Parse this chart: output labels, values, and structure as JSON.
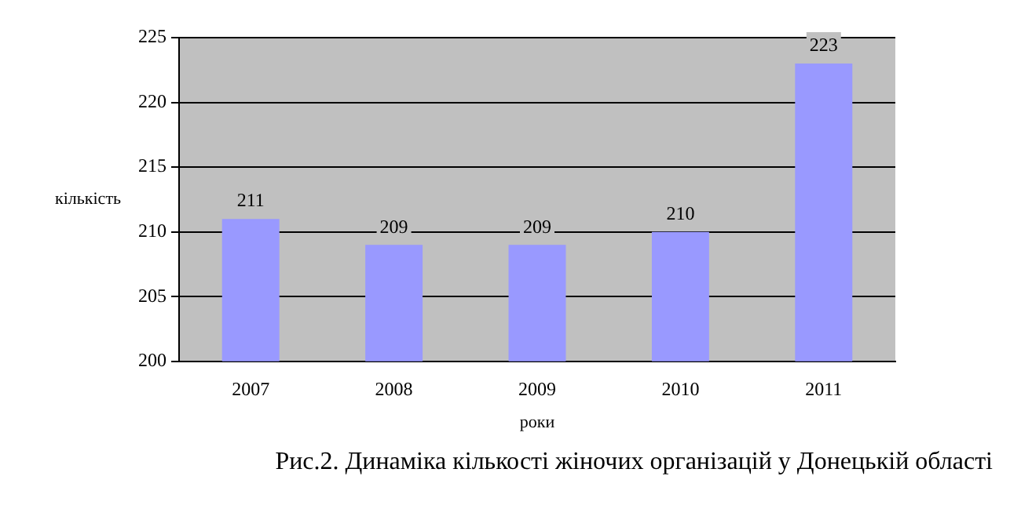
{
  "chart_data": {
    "type": "bar",
    "categories": [
      "2007",
      "2008",
      "2009",
      "2010",
      "2011"
    ],
    "values": [
      211,
      209,
      209,
      210,
      223
    ],
    "color": "#9999ff",
    "ylim": [
      200,
      225
    ],
    "yticks": [
      200,
      205,
      210,
      215,
      220,
      225
    ],
    "grid": "y",
    "data_labels": true,
    "legend": false,
    "xlabel": "роки",
    "ylabel": "кількість",
    "annotations": [
      "Рис.2. Динаміка кількості жіночих організацій у Донецькій області"
    ]
  }
}
